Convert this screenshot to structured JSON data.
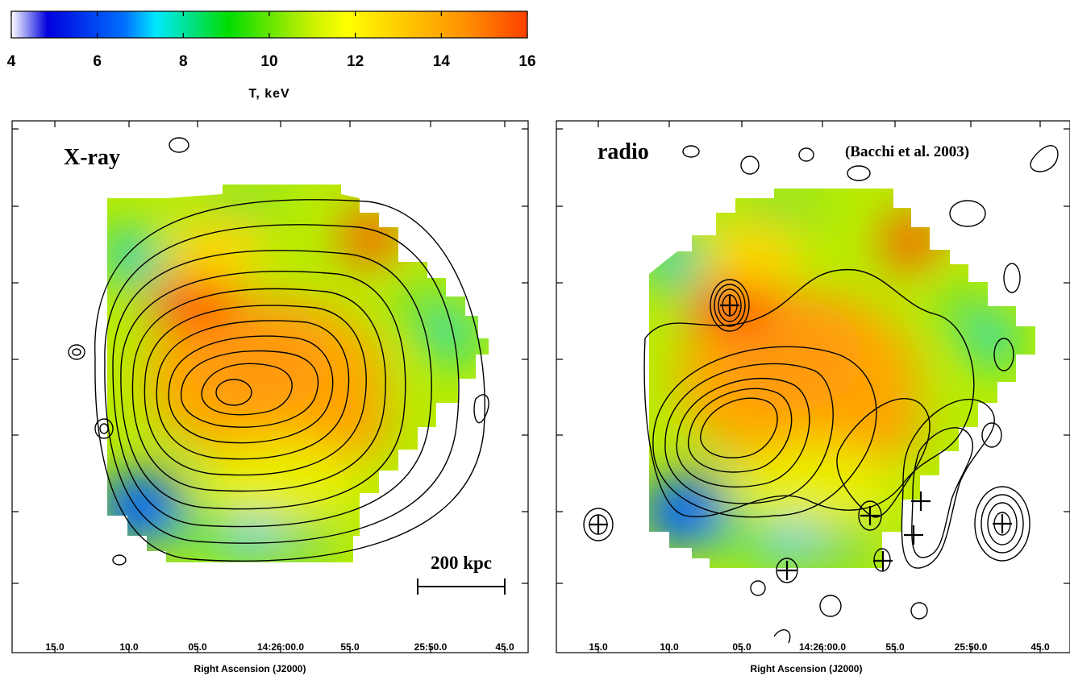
{
  "colorbar": {
    "title": "T, keV",
    "ticks": [
      4,
      6,
      8,
      10,
      12,
      14,
      16
    ],
    "range": [
      4,
      16
    ],
    "colors": [
      "#ffffff",
      "#0000dd",
      "#00e8ff",
      "#00dd00",
      "#ffff00",
      "#ffa000",
      "#ff4000"
    ]
  },
  "chart_data": [
    {
      "type": "heatmap",
      "panel_label": "X-ray",
      "xlabel": "Right Ascension (J2000)",
      "ylabel": "",
      "x_ticks": [
        "15.0",
        "10.0",
        "05.0",
        "14:26:00.0",
        "55.0",
        "25:50.0",
        "45.0"
      ],
      "overlay": "X-ray surface brightness contours",
      "scale_bar": "200 kpc",
      "value_unit": "T, keV",
      "temperature_features": [
        {
          "region": "main hot ridge",
          "T_keV": 14
        },
        {
          "region": "north-east hot spot",
          "T_keV": 15
        },
        {
          "region": "north-west hot spot",
          "T_keV": 15
        },
        {
          "region": "south-east cool region",
          "T_keV": 6
        },
        {
          "region": "south cool spots",
          "T_keV": 7
        },
        {
          "region": "west edge",
          "T_keV": 8
        }
      ]
    },
    {
      "type": "heatmap",
      "panel_label": "radio",
      "reference": "(Bacchi et al. 2003)",
      "xlabel": "Right Ascension (J2000)",
      "ylabel": "",
      "x_ticks": [
        "15.0",
        "10.0",
        "05.0",
        "14:26:00.0",
        "55.0",
        "25:50.0",
        "45.0"
      ],
      "overlay": "radio contours",
      "point_source_markers": 7,
      "value_unit": "T, keV"
    }
  ]
}
